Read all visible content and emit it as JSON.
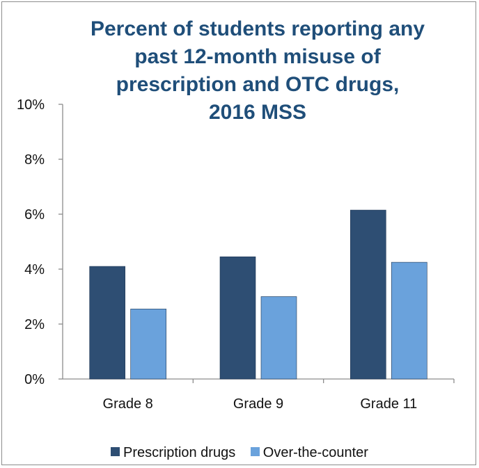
{
  "chart_data": {
    "type": "bar",
    "title_lines": [
      "Percent of students reporting any",
      "past 12-month misuse of",
      "prescription and OTC drugs,",
      "2016 MSS"
    ],
    "categories": [
      "Grade 8",
      "Grade 9",
      "Grade 11"
    ],
    "series": [
      {
        "name": "Prescription drugs",
        "values": [
          4.1,
          4.45,
          6.15
        ],
        "color": "#2e4e73"
      },
      {
        "name": "Over-the-counter",
        "values": [
          2.55,
          3.0,
          4.25
        ],
        "color": "#6aa2dc"
      }
    ],
    "ylim": [
      0,
      10
    ],
    "yticks": [
      {
        "value": 0,
        "label": "0%"
      },
      {
        "value": 2,
        "label": "2%"
      },
      {
        "value": 4,
        "label": "4%"
      },
      {
        "value": 6,
        "label": "6%"
      },
      {
        "value": 8,
        "label": "8%"
      },
      {
        "value": 10,
        "label": "10%"
      }
    ],
    "grid": false,
    "legend_position": "bottom"
  }
}
